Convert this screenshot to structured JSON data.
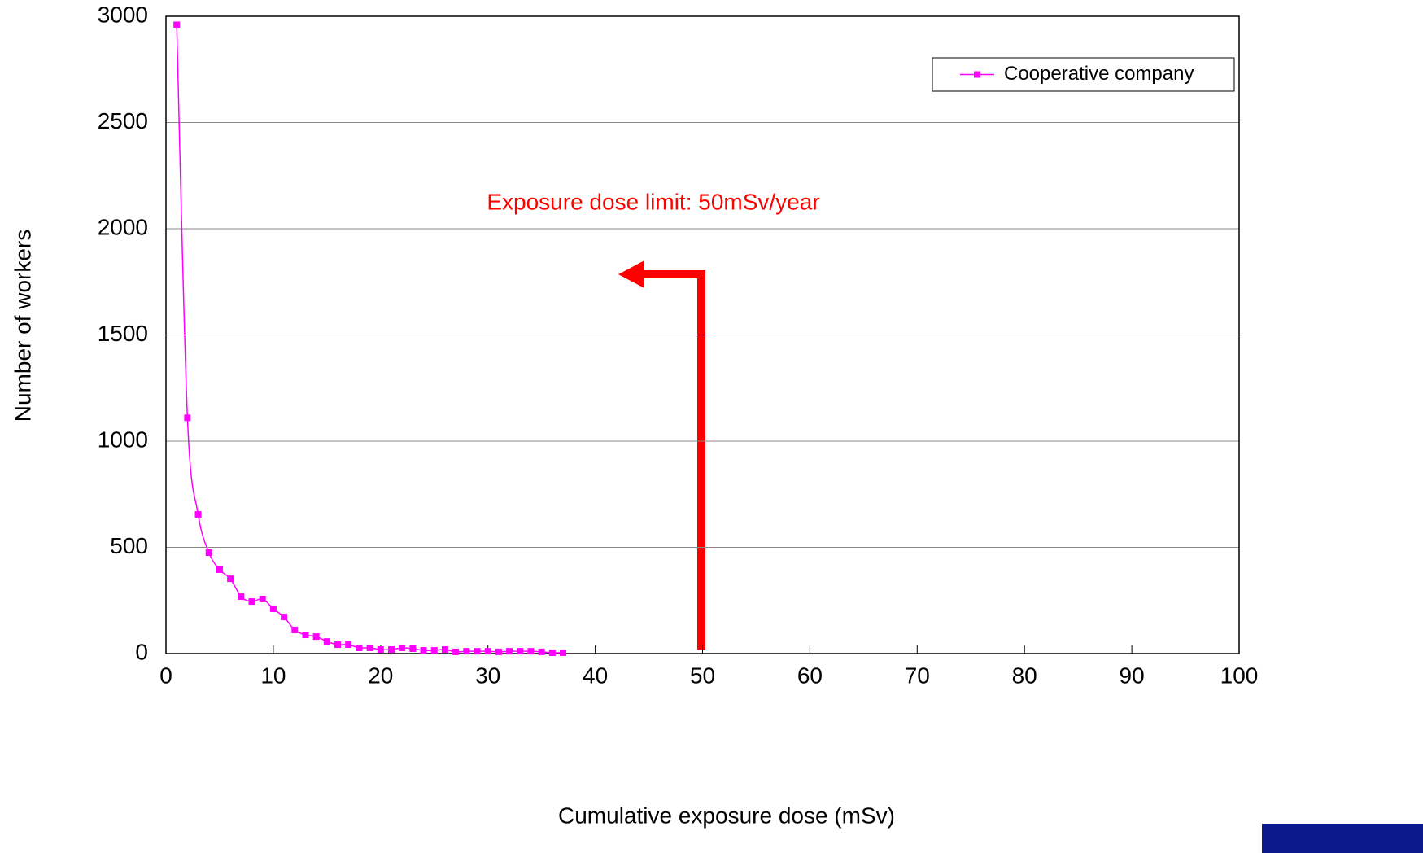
{
  "chart_data": {
    "type": "line",
    "xlabel": "Cumulative exposure dose (mSv)",
    "ylabel": "Number of workers",
    "annotation": "Exposure dose limit: 50mSv/year",
    "x": [
      1,
      2,
      3,
      4,
      5,
      6,
      7,
      8,
      9,
      10,
      11,
      12,
      13,
      14,
      15,
      16,
      17,
      18,
      19,
      20,
      21,
      22,
      23,
      24,
      25,
      26,
      27,
      28,
      29,
      30,
      31,
      32,
      33,
      34,
      35,
      36,
      37
    ],
    "series": [
      {
        "name": "Cooperative company",
        "color": "#ff00ff",
        "values": [
          2960,
          1110,
          655,
          475,
          395,
          352,
          268,
          245,
          257,
          211,
          172,
          111,
          88,
          80,
          57,
          42,
          42,
          27,
          27,
          19,
          19,
          27,
          23,
          15,
          15,
          19,
          8,
          11,
          11,
          11,
          8,
          11,
          11,
          11,
          8,
          4,
          4
        ]
      }
    ],
    "xlim": [
      0,
      100
    ],
    "xticks": [
      0,
      10,
      20,
      30,
      40,
      50,
      60,
      70,
      80,
      90,
      100
    ],
    "ylim": [
      0,
      3000
    ],
    "yticks": [
      0,
      500,
      1000,
      1500,
      2000,
      2500,
      3000
    ],
    "grid": true,
    "legend": "upper right"
  }
}
